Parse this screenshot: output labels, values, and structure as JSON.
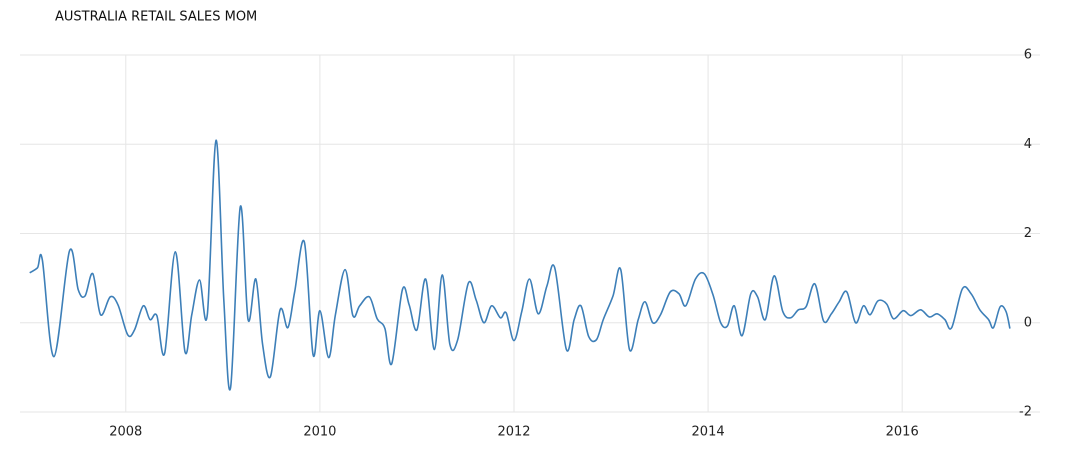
{
  "chart_data": {
    "type": "line",
    "title": "AUSTRALIA RETAIL SALES MOM",
    "x": [
      2007.01,
      2007.09,
      2007.14,
      2007.26,
      2007.42,
      2007.51,
      2007.58,
      2007.66,
      2007.74,
      2007.84,
      2007.92,
      2008.02,
      2008.09,
      2008.18,
      2008.25,
      2008.32,
      2008.4,
      2008.51,
      2008.61,
      2008.68,
      2008.76,
      2008.84,
      2008.93,
      2009.01,
      2009.08,
      2009.18,
      2009.26,
      2009.34,
      2009.41,
      2009.49,
      2009.59,
      2009.67,
      2009.74,
      2009.84,
      2009.93,
      2010.0,
      2010.09,
      2010.16,
      2010.26,
      2010.34,
      2010.41,
      2010.51,
      2010.59,
      2010.67,
      2010.74,
      2010.85,
      2010.92,
      2011.0,
      2011.09,
      2011.18,
      2011.26,
      2011.34,
      2011.42,
      2011.53,
      2011.61,
      2011.69,
      2011.77,
      2011.86,
      2011.92,
      2012.0,
      2012.08,
      2012.16,
      2012.25,
      2012.34,
      2012.42,
      2012.54,
      2012.62,
      2012.69,
      2012.77,
      2012.85,
      2012.92,
      2013.02,
      2013.1,
      2013.19,
      2013.28,
      2013.35,
      2013.43,
      2013.51,
      2013.61,
      2013.7,
      2013.77,
      2013.87,
      2013.96,
      2014.05,
      2014.13,
      2014.2,
      2014.27,
      2014.35,
      2014.44,
      2014.51,
      2014.59,
      2014.68,
      2014.77,
      2014.85,
      2014.93,
      2015.01,
      2015.1,
      2015.19,
      2015.27,
      2015.35,
      2015.43,
      2015.52,
      2015.6,
      2015.67,
      2015.75,
      2015.84,
      2015.91,
      2016.01,
      2016.09,
      2016.19,
      2016.28,
      2016.36,
      2016.44,
      2016.51,
      2016.62,
      2016.71,
      2016.8,
      2016.89,
      2016.94,
      2017.01,
      2017.07,
      2017.11
    ],
    "series": [
      {
        "name": "Retail Sales MoM",
        "color": "#3d7fb8",
        "values": [
          1.12,
          1.23,
          1.41,
          -0.76,
          1.61,
          0.74,
          0.6,
          1.1,
          0.18,
          0.58,
          0.4,
          -0.27,
          -0.16,
          0.38,
          0.07,
          0.16,
          -0.69,
          1.59,
          -0.65,
          0.18,
          0.96,
          0.18,
          4.09,
          0.51,
          -1.45,
          2.6,
          0.07,
          0.98,
          -0.49,
          -1.21,
          0.29,
          -0.11,
          0.69,
          1.81,
          -0.72,
          0.27,
          -0.78,
          0.18,
          1.19,
          0.16,
          0.38,
          0.58,
          0.09,
          -0.13,
          -0.92,
          0.74,
          0.4,
          -0.16,
          0.98,
          -0.6,
          1.07,
          -0.49,
          -0.38,
          0.89,
          0.51,
          0,
          0.38,
          0.11,
          0.22,
          -0.4,
          0.25,
          0.98,
          0.2,
          0.83,
          1.23,
          -0.6,
          0.07,
          0.38,
          -0.31,
          -0.38,
          0.07,
          0.6,
          1.19,
          -0.6,
          0.07,
          0.47,
          0,
          0.18,
          0.69,
          0.65,
          0.38,
          0.98,
          1.1,
          0.63,
          0,
          -0.07,
          0.38,
          -0.29,
          0.65,
          0.58,
          0.07,
          1.05,
          0.25,
          0.11,
          0.29,
          0.36,
          0.87,
          0.04,
          0.2,
          0.47,
          0.69,
          0,
          0.38,
          0.18,
          0.49,
          0.42,
          0.09,
          0.27,
          0.16,
          0.29,
          0.13,
          0.2,
          0.07,
          -0.11,
          0.76,
          0.65,
          0.29,
          0.07,
          -0.11,
          0.36,
          0.25,
          -0.13
        ]
      }
    ],
    "xlim": [
      2006.91,
      2017.42
    ],
    "xticks": [
      2008,
      2010,
      2012,
      2014,
      2016
    ],
    "ylim": [
      -2,
      6
    ],
    "yticks": [
      -2,
      0,
      2,
      4,
      6
    ],
    "grid": true
  }
}
